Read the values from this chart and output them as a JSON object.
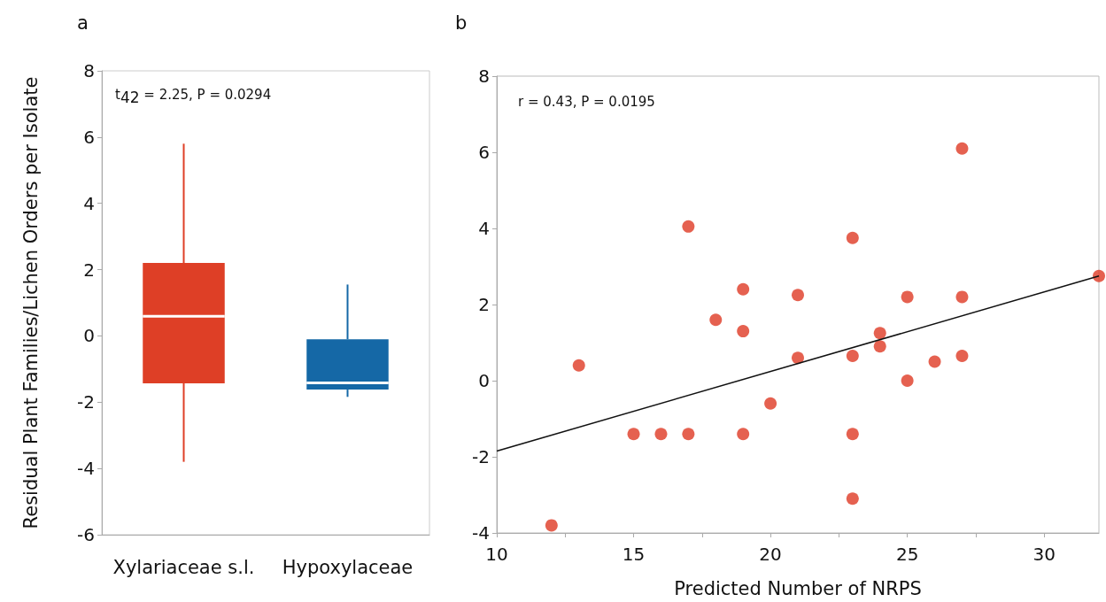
{
  "chart_data": [
    {
      "type": "box",
      "title": "a",
      "ylabel": "Residual Plant Families/Lichen Orders per Isolate",
      "categories": [
        "Xylariaceae s.l.",
        "Hypoxylaceae"
      ],
      "colors": [
        "#de3f26",
        "#1568a6"
      ],
      "boxes": [
        {
          "low": -3.8,
          "q1": -1.43,
          "median": 0.59,
          "q3": 2.2,
          "high": 5.8
        },
        {
          "low": -1.84,
          "q1": -1.62,
          "median": -1.42,
          "q3": -0.1,
          "high": 1.55
        }
      ],
      "ylim": [
        -6,
        8
      ],
      "yticks": [
        -6,
        -4,
        -2,
        0,
        2,
        4,
        6,
        8
      ],
      "grid": false,
      "annotations": [
        "t$_{42}$ = 2.25, P = 0.0294"
      ]
    },
    {
      "type": "scatter",
      "title": "b",
      "xlabel": "Predicted Number of NRPS",
      "marker": "circle",
      "grid": false,
      "xlim": [
        10,
        32
      ],
      "xticks": [
        10,
        {
          "value": 12.5,
          "label": null
        },
        15,
        {
          "value": 17.5,
          "label": null
        },
        20,
        {
          "value": 22.5,
          "label": null
        },
        25,
        {
          "value": 27.5,
          "label": null
        },
        30
      ],
      "ylim": [
        -4,
        8
      ],
      "yticks": [
        -4,
        -2,
        0,
        2,
        4,
        6,
        8
      ],
      "series": [
        {
          "type": "scatter",
          "color": "#df3a24",
          "x": [
            12,
            13,
            15,
            16,
            17,
            17,
            18,
            19,
            19,
            19,
            20,
            21,
            21,
            23,
            23,
            23,
            23,
            24,
            24,
            25,
            25,
            26,
            27,
            27,
            27,
            32
          ],
          "values": [
            -3.8,
            0.4,
            -1.4,
            -1.4,
            4.05,
            -1.4,
            1.6,
            2.4,
            1.3,
            -1.4,
            -0.6,
            2.25,
            0.6,
            3.75,
            0.65,
            -1.4,
            -3.1,
            1.25,
            0.9,
            2.2,
            0,
            0.5,
            6.1,
            2.2,
            0.65,
            2.75
          ]
        },
        {
          "type": "line",
          "color": "#111111",
          "marker": "none",
          "x": [
            10,
            32
          ],
          "values": [
            -1.85,
            2.75
          ]
        }
      ],
      "annotations": [
        "r = 0.43, P = 0.0195"
      ]
    }
  ]
}
